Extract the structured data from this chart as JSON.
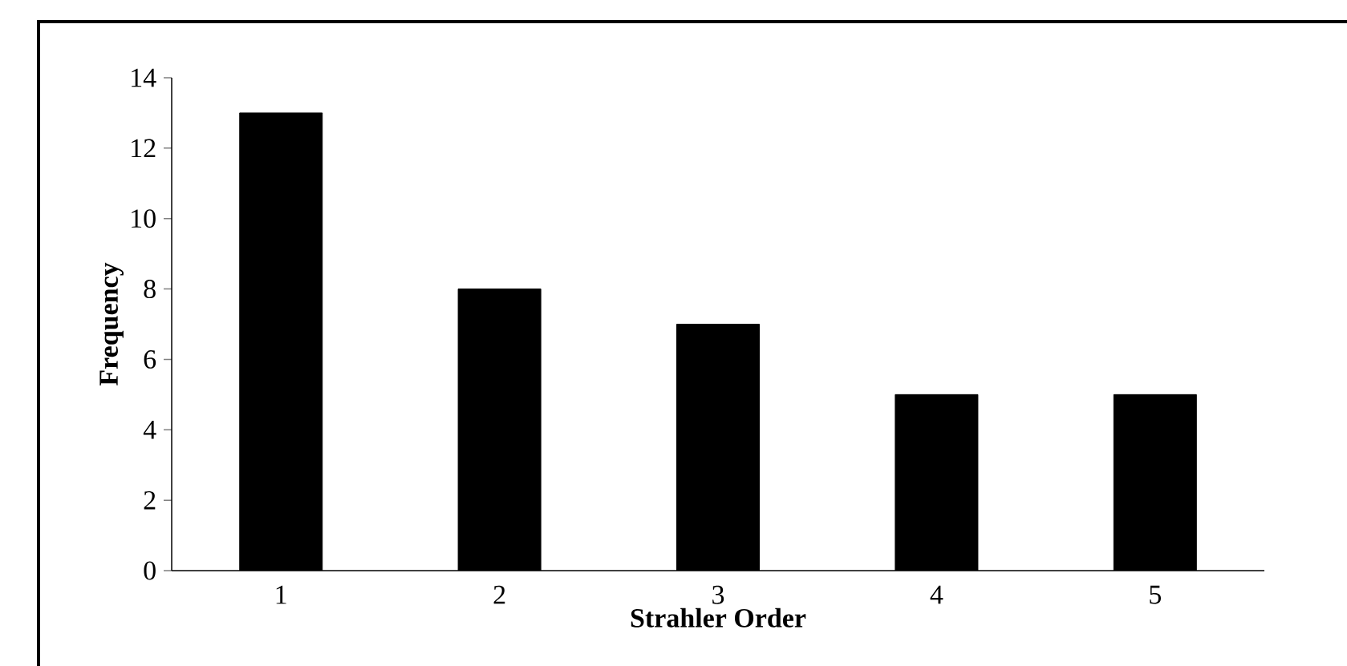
{
  "chart_data": {
    "type": "bar",
    "xlabel": "Strahler Order",
    "ylabel": "Frequency",
    "categories": [
      "1",
      "2",
      "3",
      "4",
      "5"
    ],
    "values": [
      13,
      8,
      7,
      5,
      5
    ],
    "color": "#000000",
    "ylim": [
      0,
      14
    ],
    "yticks": [
      0,
      2,
      4,
      6,
      8,
      10,
      12,
      14
    ],
    "grid": false
  }
}
